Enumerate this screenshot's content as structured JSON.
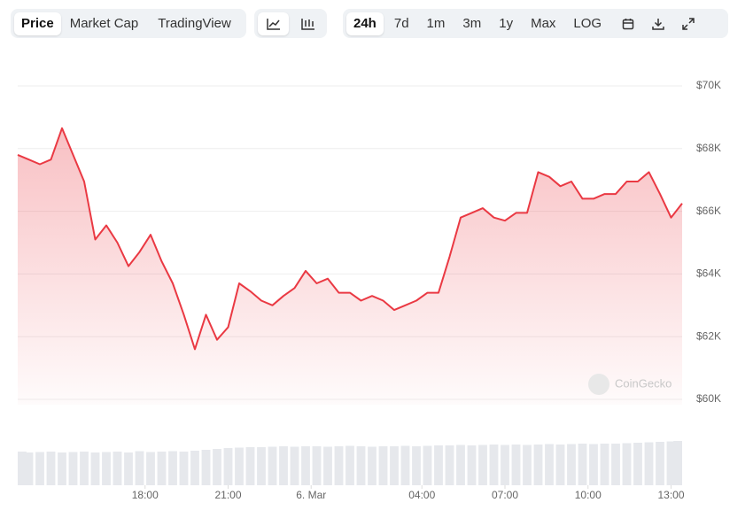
{
  "toolbar": {
    "chart_tabs": [
      "Price",
      "Market Cap",
      "TradingView"
    ],
    "ranges": [
      "24h",
      "7d",
      "1m",
      "3m",
      "1y",
      "Max",
      "LOG"
    ]
  },
  "watermark": "CoinGecko",
  "chart_data": {
    "type": "area",
    "color": "#ea3943",
    "grid": true,
    "x": [
      13.4,
      13.8,
      14.2,
      14.6,
      15,
      15.4,
      15.8,
      16.2,
      16.6,
      17,
      17.4,
      17.8,
      18.2,
      18.6,
      19,
      19.4,
      19.8,
      20.2,
      20.6,
      21,
      21.4,
      21.8,
      22.2,
      22.6,
      23,
      23.4,
      23.8,
      24.2,
      24.6,
      25,
      25.4,
      25.8,
      26.2,
      26.6,
      27,
      27.4,
      27.8,
      28.2,
      28.6,
      29,
      29.4,
      29.8,
      30.2,
      30.6,
      31,
      31.4,
      31.8,
      32.2,
      32.6,
      33,
      33.4,
      33.8,
      34.2,
      34.6,
      35,
      35.4,
      35.8,
      36.2,
      36.6,
      37,
      37.4
    ],
    "values": [
      67800,
      67650,
      67500,
      67650,
      68650,
      67800,
      66950,
      65100,
      65550,
      65000,
      64250,
      64700,
      65250,
      64400,
      63700,
      62700,
      61600,
      62700,
      61900,
      62300,
      63700,
      63450,
      63150,
      63000,
      63300,
      63550,
      64100,
      63700,
      63850,
      63400,
      63400,
      63150,
      63300,
      63150,
      62850,
      63000,
      63150,
      63400,
      63400,
      64550,
      65800,
      65950,
      66100,
      65800,
      65700,
      65950,
      65950,
      67250,
      67100,
      66800,
      66950,
      66400,
      66400,
      66550,
      66550,
      66950,
      66950,
      67250,
      66550,
      65800,
      66250
    ],
    "volume": [
      76,
      74,
      75,
      76,
      74,
      75,
      76,
      74,
      75,
      76,
      74,
      77,
      75,
      76,
      77,
      76,
      78,
      80,
      82,
      84,
      85,
      86,
      86,
      87,
      88,
      87,
      88,
      88,
      87,
      88,
      89,
      88,
      87,
      88,
      88,
      89,
      88,
      89,
      90,
      90,
      91,
      90,
      91,
      92,
      91,
      92,
      91,
      92,
      93,
      92,
      93,
      94,
      93,
      94,
      94,
      95,
      96,
      97,
      98,
      99,
      100
    ],
    "xlim": [
      13.4,
      37.4
    ],
    "xticks": [
      {
        "value": 18,
        "label": "18:00"
      },
      {
        "value": 21,
        "label": "21:00"
      },
      {
        "value": 24,
        "label": "6. Mar"
      },
      {
        "value": 28,
        "label": "04:00"
      },
      {
        "value": 31,
        "label": "07:00"
      },
      {
        "value": 34,
        "label": "10:00"
      },
      {
        "value": 37,
        "label": "13:00"
      }
    ],
    "ylim": [
      60000,
      70000
    ],
    "yticks": [
      {
        "value": 60000,
        "label": "$60K"
      },
      {
        "value": 62000,
        "label": "$62K"
      },
      {
        "value": 64000,
        "label": "$64K"
      },
      {
        "value": 66000,
        "label": "$66K"
      },
      {
        "value": 68000,
        "label": "$68K"
      },
      {
        "value": 70000,
        "label": "$70K"
      }
    ]
  }
}
